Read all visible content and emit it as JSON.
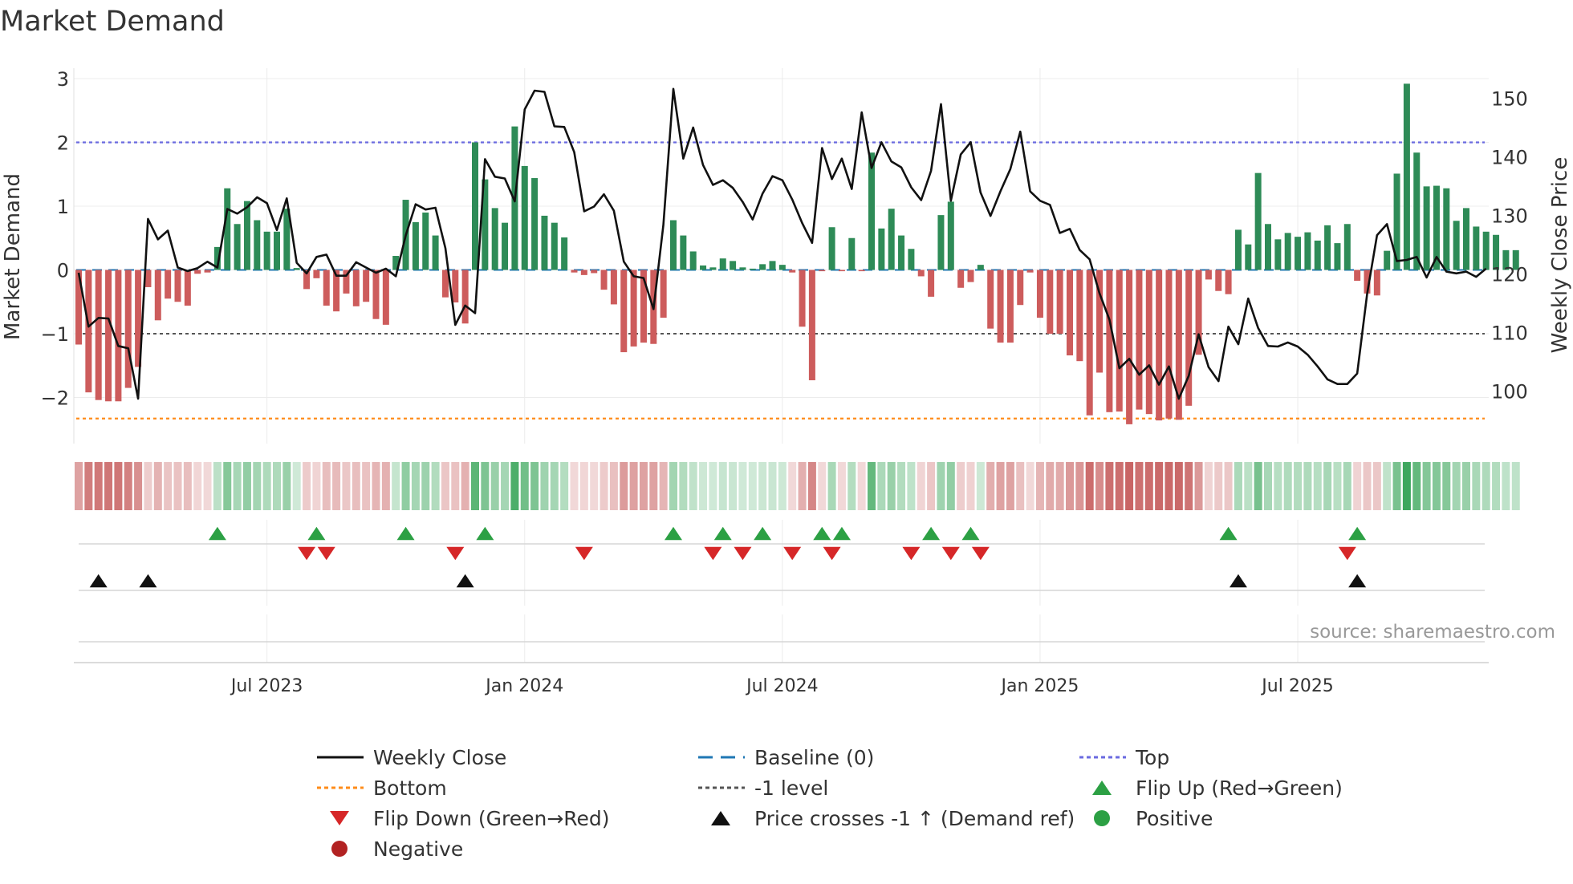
{
  "chart_data": {
    "type": "bar",
    "title": "Market Demand",
    "ylabel": "Market Demand",
    "y2label": "Weekly Close Price",
    "source": "source: sharemaestro.com",
    "ylim": [
      -2.65,
      3.15
    ],
    "y2lim": [
      94.4,
      155.8
    ],
    "yticks": [
      "3",
      "2",
      "1",
      "0",
      "−1",
      "−2"
    ],
    "yticks_values": [
      3,
      2,
      1,
      0,
      -1,
      -2
    ],
    "y2ticks": [
      "150",
      "140",
      "130",
      "120",
      "110",
      "100"
    ],
    "y2ticks_values": [
      150,
      140,
      130,
      120,
      110,
      100
    ],
    "xticks": [
      "Jul 2023",
      "Jan 2024",
      "Jul 2024",
      "Jan 2025",
      "Jul 2025"
    ],
    "xticks_week": [
      19,
      45,
      71,
      97,
      123
    ],
    "reference_lines": {
      "top": 2.0,
      "bottom": -2.33,
      "minus_one": -1.0,
      "baseline": 0
    },
    "series": [
      {
        "name": "Market Demand",
        "values": [
          -1.17,
          -1.92,
          -2.04,
          -2.06,
          -2.06,
          -1.85,
          -1.52,
          -0.27,
          -0.79,
          -0.45,
          -0.5,
          -0.56,
          -0.06,
          -0.04,
          0.36,
          1.28,
          0.72,
          1.08,
          0.78,
          0.6,
          0.6,
          0.96,
          0.03,
          -0.3,
          -0.13,
          -0.56,
          -0.65,
          -0.37,
          -0.57,
          -0.5,
          -0.77,
          -0.86,
          0.22,
          1.1,
          0.75,
          0.9,
          0.54,
          -0.43,
          -0.51,
          -0.84,
          2.0,
          1.42,
          0.97,
          0.74,
          2.25,
          1.63,
          1.44,
          0.85,
          0.74,
          0.51,
          -0.04,
          -0.08,
          -0.05,
          -0.31,
          -0.54,
          -1.29,
          -1.2,
          -1.14,
          -1.16,
          -0.75,
          0.78,
          0.54,
          0.29,
          0.07,
          0.04,
          0.18,
          0.14,
          0.04,
          0.02,
          0.09,
          0.14,
          0.08,
          -0.04,
          -0.89,
          -1.73,
          -0.02,
          0.67,
          -0.02,
          0.5,
          -0.02,
          1.84,
          0.65,
          0.96,
          0.54,
          0.33,
          -0.1,
          -0.42,
          0.86,
          1.07,
          -0.28,
          -0.19,
          0.08,
          -0.92,
          -1.14,
          -1.14,
          -0.55,
          -0.04,
          -0.75,
          -1.0,
          -1.0,
          -1.34,
          -1.43,
          -2.28,
          -1.61,
          -2.23,
          -2.22,
          -2.42,
          -2.19,
          -2.26,
          -2.36,
          -2.33,
          -2.35,
          -2.13,
          -1.33,
          -0.15,
          -0.33,
          -0.38,
          0.63,
          0.4,
          1.52,
          0.72,
          0.48,
          0.58,
          0.52,
          0.59,
          0.46,
          0.7,
          0.42,
          0.72,
          -0.17,
          -0.37,
          -0.4,
          0.3,
          1.51,
          2.92,
          1.84,
          1.31,
          1.32,
          1.28,
          0.77,
          0.97,
          0.68,
          0.6,
          0.55,
          0.31,
          0.31
        ]
      },
      {
        "name": "Weekly Close",
        "values": [
          120.2,
          111.0,
          112.5,
          112.4,
          107.7,
          107.3,
          98.7,
          129.4,
          125.9,
          127.4,
          121.1,
          120.5,
          121.0,
          122.1,
          121.1,
          131.1,
          130.3,
          131.4,
          133.1,
          132.1,
          127.5,
          132.9,
          121.9,
          120.1,
          122.9,
          123.3,
          119.7,
          119.7,
          122.0,
          121.1,
          120.2,
          120.9,
          119.6,
          126.6,
          131.9,
          131.0,
          131.3,
          124.4,
          111.3,
          114.6,
          113.3,
          139.6,
          136.6,
          136.3,
          132.4,
          148.1,
          151.3,
          151.1,
          145.2,
          145.1,
          140.8,
          130.7,
          131.5,
          133.6,
          130.8,
          122.1,
          119.6,
          119.3,
          114.0,
          128.4,
          151.6,
          139.7,
          145.0,
          138.6,
          135.2,
          136.0,
          134.7,
          132.3,
          129.3,
          133.7,
          136.7,
          136.0,
          132.7,
          128.7,
          125.3,
          141.5,
          136.2,
          139.7,
          134.5,
          147.6,
          138.1,
          142.5,
          139.2,
          138.2,
          134.8,
          132.6,
          137.6,
          149.0,
          132.5,
          140.4,
          142.5,
          133.9,
          129.9,
          134.1,
          137.9,
          144.3,
          134.1,
          132.5,
          131.8,
          127.0,
          127.7,
          124.1,
          122.5,
          116.7,
          112.2,
          103.9,
          105.5,
          102.8,
          104.4,
          101.1,
          104.2,
          98.7,
          102.6,
          109.7,
          104.1,
          101.7,
          111.0,
          108.0,
          115.8,
          110.8,
          107.7,
          107.6,
          108.3,
          107.6,
          106.2,
          104.2,
          102.0,
          101.2,
          101.2,
          103.0,
          116.6,
          126.6,
          128.5,
          122.2,
          122.4,
          122.9,
          119.4,
          122.9,
          120.4,
          120.1,
          120.4,
          119.5,
          120.9
        ]
      }
    ],
    "markers": {
      "flip_up_weeks": [
        14,
        24,
        33,
        41,
        60,
        65,
        69,
        75,
        77,
        86,
        90,
        116,
        129
      ],
      "flip_down_weeks": [
        23,
        25,
        38,
        51,
        64,
        67,
        72,
        76,
        84,
        88,
        91,
        128
      ],
      "price_cross_weeks": [
        2,
        7,
        39,
        117,
        129
      ]
    },
    "legend": [
      {
        "label": "Weekly Close",
        "kind": "line",
        "color": "#111111"
      },
      {
        "label": "Baseline (0)",
        "kind": "dash",
        "color": "#1f77b4"
      },
      {
        "label": "Top",
        "kind": "dot",
        "color": "#6a6ae0"
      },
      {
        "label": "Bottom",
        "kind": "dot",
        "color": "#ff8c1a"
      },
      {
        "label": "-1 level",
        "kind": "dot",
        "color": "#555555"
      },
      {
        "label": "Flip Up (Red→Green)",
        "kind": "tri-up",
        "color": "#2ca044"
      },
      {
        "label": "Flip Down (Green→Red)",
        "kind": "tri-down",
        "color": "#d62728"
      },
      {
        "label": "Price crosses -1 ↑ (Demand ref)",
        "kind": "tri-up",
        "color": "#111111"
      },
      {
        "label": "Positive",
        "kind": "circle",
        "color": "#2ca044"
      },
      {
        "label": "Negative",
        "kind": "circle",
        "color": "#b22222"
      }
    ],
    "colors": {
      "positive": "#2e8b57",
      "negative": "#cd5c5c",
      "close": "#111111"
    }
  }
}
